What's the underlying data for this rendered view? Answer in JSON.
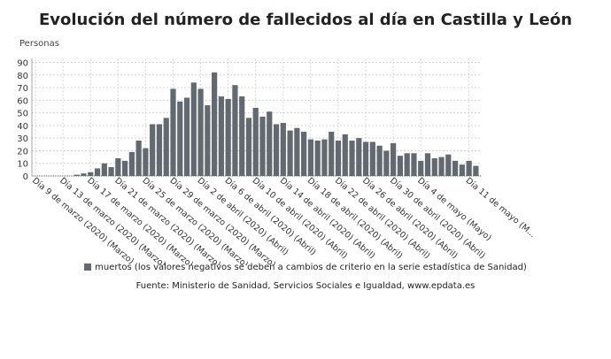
{
  "chart_data": {
    "type": "bar",
    "title": "Evolución del número de fallecidos al día en Castilla y León",
    "ylabel": "Personas",
    "ylim": [
      0,
      90
    ],
    "yticks": [
      0,
      10,
      20,
      30,
      40,
      50,
      60,
      70,
      80,
      90
    ],
    "grid": true,
    "bar_color": "#636970",
    "x_start": "2020-03-09",
    "x_end": "2020-05-12",
    "tick_labels": [
      {
        "date": "2020-03-09",
        "text": "Día 9 de marzo (2020) (Marzo)"
      },
      {
        "date": "2020-03-13",
        "text": "Día 13 de marzo (2020) (Marzo)"
      },
      {
        "date": "2020-03-17",
        "text": "Día 17 de marzo (2020) (Marzo)"
      },
      {
        "date": "2020-03-21",
        "text": "Día 21 de marzo (2020) (Marzo)"
      },
      {
        "date": "2020-03-25",
        "text": "Día 25 de marzo (2020) (Marzo)"
      },
      {
        "date": "2020-03-29",
        "text": "Día 29 de marzo (2020) (Marzo)"
      },
      {
        "date": "2020-04-02",
        "text": "Día 2 de abril (2020) (Abril)"
      },
      {
        "date": "2020-04-06",
        "text": "Día 6 de abril (2020) (Abril)"
      },
      {
        "date": "2020-04-10",
        "text": "Día 10 de abril (2020) (Abril)"
      },
      {
        "date": "2020-04-14",
        "text": "Día 14 de abril (2020) (Abril)"
      },
      {
        "date": "2020-04-18",
        "text": "Día 18 de abril (2020) (Abril)"
      },
      {
        "date": "2020-04-22",
        "text": "Día 22 de abril (2020) (Abril)"
      },
      {
        "date": "2020-04-26",
        "text": "Día 26 de abril (2020) (Abril)"
      },
      {
        "date": "2020-04-30",
        "text": "Día 30 de abril (2020) (Abril)"
      },
      {
        "date": "2020-05-04",
        "text": "Día 4 de mayo (Mayo)"
      },
      {
        "date": "2020-05-11",
        "text": "Día 11 de mayo (M..."
      }
    ],
    "series": [
      {
        "name": "muertos (los valores negativos se deben a cambios de criterio en la serie estadística de Sanidad)",
        "values": [
          0,
          0,
          0,
          0,
          0,
          0,
          1,
          2,
          3,
          6,
          10,
          7,
          14,
          12,
          19,
          28,
          22,
          41,
          41,
          46,
          69,
          59,
          62,
          74,
          69,
          56,
          82,
          63,
          61,
          72,
          63,
          46,
          54,
          47,
          51,
          41,
          42,
          36,
          38,
          35,
          29,
          28,
          29,
          35,
          28,
          33,
          28,
          30,
          27,
          27,
          24,
          20,
          26,
          16,
          18,
          18,
          12,
          18,
          14,
          15,
          17,
          12,
          9,
          12,
          8
        ]
      }
    ],
    "legend_position": "bottom",
    "source": "Fuente: Ministerio de Sanidad, Servicios Sociales e Igualdad, www.epdata.es"
  }
}
